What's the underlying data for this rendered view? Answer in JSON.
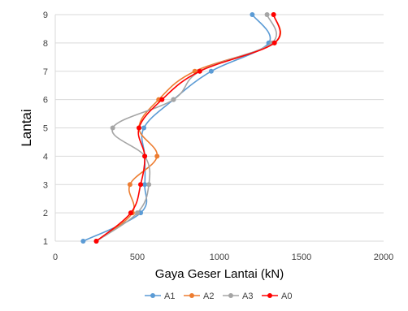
{
  "chart_data": {
    "type": "line",
    "title": "",
    "xlabel": "Gaya Geser Lantai (kN)",
    "ylabel": "Lantai",
    "xlim": [
      0,
      2000
    ],
    "ylim": [
      1,
      9
    ],
    "x_ticks": [
      "0",
      "500",
      "1000",
      "1500",
      "2000"
    ],
    "y_ticks": [
      "1",
      "2",
      "3",
      "4",
      "5",
      "6",
      "7",
      "8",
      "9"
    ],
    "grid": "horizontal",
    "legend_position": "bottom",
    "series": [
      {
        "name": "A1",
        "color": "#5B9BD5",
        "points": [
          [
            170,
            1
          ],
          [
            520,
            2
          ],
          [
            545,
            3
          ],
          [
            545,
            4
          ],
          [
            540,
            5
          ],
          [
            720,
            6
          ],
          [
            950,
            7
          ],
          [
            1300,
            8
          ],
          [
            1200,
            9
          ]
        ]
      },
      {
        "name": "A2",
        "color": "#ED7D31",
        "points": [
          [
            250,
            1
          ],
          [
            470,
            2
          ],
          [
            455,
            3
          ],
          [
            620,
            4
          ],
          [
            510,
            5
          ],
          [
            630,
            6
          ],
          [
            850,
            7
          ],
          [
            1335,
            8
          ],
          [
            1330,
            9
          ]
        ]
      },
      {
        "name": "A3",
        "color": "#A5A5A5",
        "points": [
          [
            250,
            1
          ],
          [
            500,
            2
          ],
          [
            570,
            3
          ],
          [
            545,
            4
          ],
          [
            350,
            5
          ],
          [
            720,
            6
          ],
          [
            880,
            7
          ],
          [
            1320,
            8
          ],
          [
            1290,
            9
          ]
        ]
      },
      {
        "name": "A0",
        "color": "#FF0000",
        "points": [
          [
            250,
            1
          ],
          [
            460,
            2
          ],
          [
            520,
            3
          ],
          [
            545,
            4
          ],
          [
            510,
            5
          ],
          [
            650,
            6
          ],
          [
            880,
            7
          ],
          [
            1335,
            8
          ],
          [
            1330,
            9
          ]
        ]
      }
    ]
  }
}
